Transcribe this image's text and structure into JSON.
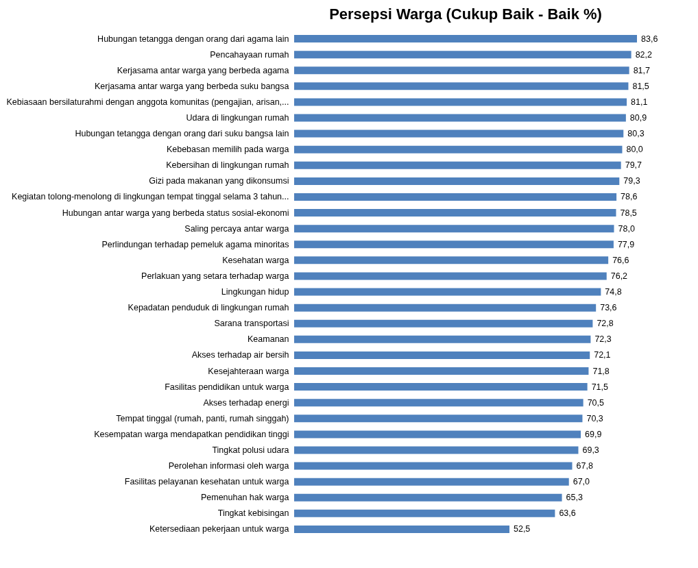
{
  "chart_data": {
    "type": "bar",
    "orientation": "horizontal",
    "title": "Persepsi Warga (Cukup Baik - Baik %)",
    "categories": [
      "Hubungan tetangga dengan orang dari agama lain",
      "Pencahayaan rumah",
      "Kerjasama  antar warga yang berbeda agama",
      "Kerjasama  antar warga yang berbeda suku bangsa",
      "Kebiasaan bersilaturahmi dengan anggota komunitas (pengajian, arisan,...",
      "Udara di lingkungan rumah",
      "Hubungan tetangga dengan orang dari suku bangsa lain",
      "Kebebasan memilih pada warga",
      "Kebersihan di lingkungan rumah",
      "Gizi pada makanan yang dikonsumsi",
      "Kegiatan tolong-menolong di lingkungan tempat tinggal selama 3 tahun...",
      "Hubungan antar warga yang berbeda status sosial-ekonomi",
      "Saling percaya antar warga",
      "Perlindungan terhadap pemeluk agama minoritas",
      "Kesehatan warga",
      "Perlakuan yang setara terhadap warga",
      "Lingkungan hidup",
      "Kepadatan penduduk di lingkungan rumah",
      "Sarana transportasi",
      "Keamanan",
      "Akses terhadap air bersih",
      "Kesejahteraan warga",
      "Fasilitas pendidikan untuk warga",
      "Akses terhadap energi",
      "Tempat tinggal (rumah, panti, rumah singgah)",
      "Kesempatan warga mendapatkan pendidikan tinggi",
      "Tingkat  polusi udara",
      "Perolehan informasi oleh warga",
      "Fasilitas pelayanan kesehatan untuk warga",
      "Pemenuhan hak warga",
      "Tingkat kebisingan",
      "Ketersediaan pekerjaan untuk warga"
    ],
    "values": [
      83.6,
      82.2,
      81.7,
      81.5,
      81.1,
      80.9,
      80.3,
      80.0,
      79.7,
      79.3,
      78.6,
      78.5,
      78.0,
      77.9,
      76.6,
      76.2,
      74.8,
      73.6,
      72.8,
      72.3,
      72.1,
      71.8,
      71.5,
      70.5,
      70.3,
      69.9,
      69.3,
      67.8,
      67.0,
      65.3,
      63.6,
      52.5
    ],
    "value_labels": [
      "83,6",
      "82,2",
      "81,7",
      "81,5",
      "81,1",
      "80,9",
      "80,3",
      "80,0",
      "79,7",
      "79,3",
      "78,6",
      "78,5",
      "78,0",
      "77,9",
      "76,6",
      "76,2",
      "74,8",
      "73,6",
      "72,8",
      "72,3",
      "72,1",
      "71,8",
      "71,5",
      "70,5",
      "70,3",
      "69,9",
      "69,3",
      "67,8",
      "67,0",
      "65,3",
      "63,6",
      "52,5"
    ],
    "color": "#4f81bd",
    "tick_labels": "y"
  }
}
